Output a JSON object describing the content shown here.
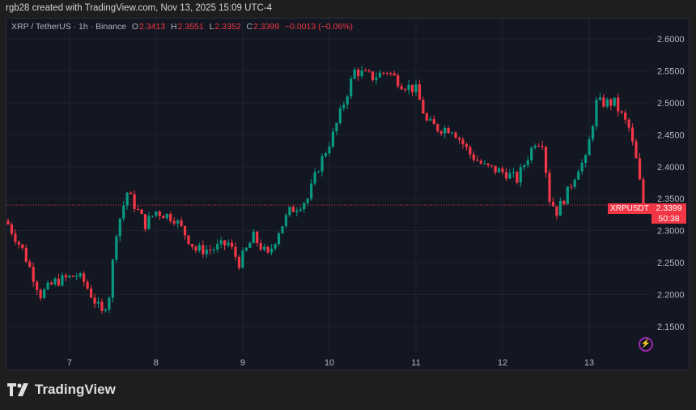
{
  "credit": "rgb28 created with TradingView.com, Nov 13, 2025 15:09 UTC-4",
  "legend": {
    "symbol": "XRP / TetherUS · 1h · Binance",
    "o_label": "O",
    "o": "2.3413",
    "h_label": "H",
    "h": "2.3551",
    "l_label": "L",
    "l": "2.3352",
    "c_label": "C",
    "c": "2.3399",
    "change": "−0.0013 (−0.06%)"
  },
  "price_label": {
    "symbol": "XRPUSDT",
    "price": "2.3399",
    "countdown": "50:38"
  },
  "brand": "TradingView",
  "colors": {
    "up": "#089981",
    "down": "#f23645",
    "grid": "#1f2330"
  },
  "chart_data": {
    "type": "candlestick",
    "interval": "1h",
    "ylim": [
      2.13,
      2.63
    ],
    "y_ticks": [
      "2.1500",
      "2.2000",
      "2.2500",
      "2.3000",
      "2.3500",
      "2.4000",
      "2.4500",
      "2.5000",
      "2.5500",
      "2.6000"
    ],
    "x_ticks": [
      {
        "label": "7",
        "hour": 17
      },
      {
        "label": "8",
        "hour": 41
      },
      {
        "label": "9",
        "hour": 65
      },
      {
        "label": "10",
        "hour": 89
      },
      {
        "label": "11",
        "hour": 113
      },
      {
        "label": "12",
        "hour": 137
      },
      {
        "label": "13",
        "hour": 161
      }
    ],
    "candle_count": 177,
    "last_price": 2.3399,
    "close_path": [
      [
        0,
        2.31
      ],
      [
        4,
        2.27
      ],
      [
        9,
        2.2
      ],
      [
        13,
        2.22
      ],
      [
        19,
        2.23
      ],
      [
        21,
        2.22
      ],
      [
        26,
        2.17
      ],
      [
        28,
        2.2
      ],
      [
        30,
        2.3
      ],
      [
        33,
        2.36
      ],
      [
        36,
        2.33
      ],
      [
        38,
        2.31
      ],
      [
        41,
        2.33
      ],
      [
        46,
        2.32
      ],
      [
        52,
        2.27
      ],
      [
        56,
        2.27
      ],
      [
        61,
        2.28
      ],
      [
        64,
        2.25
      ],
      [
        68,
        2.29
      ],
      [
        72,
        2.26
      ],
      [
        75,
        2.3
      ],
      [
        78,
        2.33
      ],
      [
        83,
        2.35
      ],
      [
        86,
        2.4
      ],
      [
        90,
        2.45
      ],
      [
        93,
        2.5
      ],
      [
        96,
        2.55
      ],
      [
        101,
        2.54
      ],
      [
        105,
        2.55
      ],
      [
        109,
        2.53
      ],
      [
        113,
        2.52
      ],
      [
        116,
        2.47
      ],
      [
        119,
        2.46
      ],
      [
        123,
        2.46
      ],
      [
        128,
        2.42
      ],
      [
        132,
        2.4
      ],
      [
        138,
        2.39
      ],
      [
        141,
        2.38
      ],
      [
        146,
        2.44
      ],
      [
        148,
        2.44
      ],
      [
        150,
        2.35
      ],
      [
        152,
        2.33
      ],
      [
        155,
        2.36
      ],
      [
        158,
        2.4
      ],
      [
        160,
        2.41
      ],
      [
        163,
        2.5
      ],
      [
        168,
        2.5
      ],
      [
        172,
        2.46
      ],
      [
        174,
        2.41
      ],
      [
        176,
        2.3399
      ]
    ]
  }
}
